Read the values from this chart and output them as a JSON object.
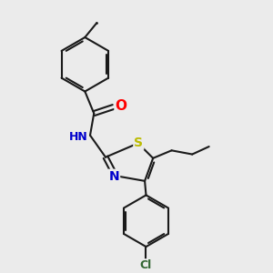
{
  "background_color": "#ebebeb",
  "bond_color": "#1a1a1a",
  "atom_colors": {
    "N": "#0000cc",
    "O": "#ff0000",
    "S": "#bbbb00",
    "Cl": "#336633",
    "C": "#1a1a1a",
    "H": "#338888"
  },
  "figsize": [
    3.0,
    3.0
  ],
  "dpi": 100
}
